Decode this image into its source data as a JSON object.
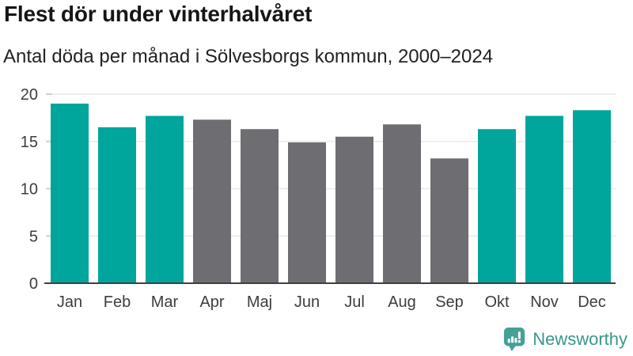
{
  "header": {
    "title": "Flest dör under vinterhalvåret",
    "subtitle": "Antal döda per månad i Sölvesborgs kommun, 2000–2024"
  },
  "chart_data": {
    "type": "bar",
    "title": "Flest dör under vinterhalvåret",
    "subtitle": "Antal döda per månad i Sölvesborgs kommun, 2000–2024",
    "categories": [
      "Jan",
      "Feb",
      "Mar",
      "Apr",
      "Maj",
      "Jun",
      "Jul",
      "Aug",
      "Sep",
      "Okt",
      "Nov",
      "Dec"
    ],
    "values": [
      19.0,
      16.5,
      17.7,
      17.3,
      16.3,
      14.9,
      15.5,
      16.8,
      13.2,
      16.3,
      17.7,
      18.3
    ],
    "bar_palette": [
      "teal",
      "teal",
      "teal",
      "gray",
      "gray",
      "gray",
      "gray",
      "gray",
      "gray",
      "teal",
      "teal",
      "teal"
    ],
    "xlabel": "",
    "ylabel": "",
    "ylim": [
      0,
      20
    ],
    "yticks": [
      0,
      5,
      10,
      15,
      20
    ],
    "grid": true,
    "legend": "none",
    "colors": {
      "teal": "#00a59b",
      "gray": "#6d6d72"
    }
  },
  "footer": {
    "brand": "Newsworthy"
  },
  "colors": {
    "title-text": "#161616",
    "subtitle-text": "#222222",
    "axis-text": "#3d3d3d",
    "gridline": "#e9e9e9",
    "tick-mark": "#d0d0d0",
    "baseline": "#404040",
    "brand-teal": "#45a096",
    "brand-text-teal": "#3a968c"
  }
}
